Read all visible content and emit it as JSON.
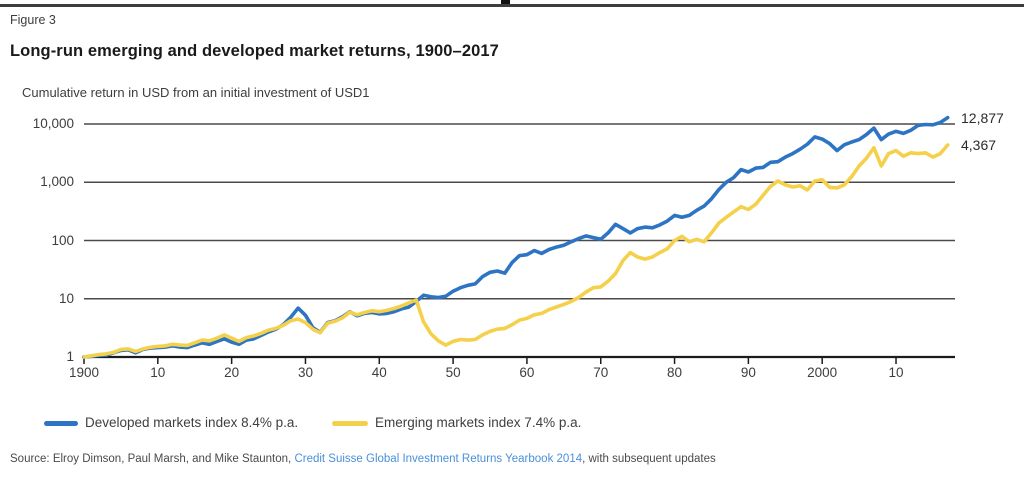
{
  "figure_label": "Figure 3",
  "title": "Long-run emerging and developed market returns, 1900–2017",
  "subtitle": "Cumulative return in USD from an initial investment of USD1",
  "end_labels": {
    "developed": "12,877",
    "emerging": "4,367"
  },
  "legend": [
    {
      "label": "Developed markets index 8.4% p.a.",
      "color": "#2e74c4"
    },
    {
      "label": "Emerging markets index 7.4% p.a.",
      "color": "#f5d04a"
    }
  ],
  "source": {
    "prefix": "Source: Elroy Dimson, Paul Marsh, and Mike Staunton, ",
    "link": "Credit Suisse Global Investment Returns Yearbook 2014",
    "suffix": ", with subsequent updates"
  },
  "colors": {
    "developed_line": "#2e74c4",
    "emerging_line": "#f5d04a",
    "gridline": "#4a4a4a",
    "axis": "#1c1c1c",
    "link": "#4a90d9"
  },
  "chart_data": {
    "type": "line",
    "title": "Long-run emerging and developed market returns, 1900–2017",
    "note": "Cumulative return in USD from an initial investment of USD1",
    "yscale": "log",
    "ylim": [
      1,
      17000
    ],
    "grid": "horizontal",
    "legend_position": "bottom",
    "x_start": 1900,
    "x_step": 1,
    "x_end": 2017,
    "x_ticks": [
      {
        "year": 1900,
        "label": "1900"
      },
      {
        "year": 1910,
        "label": "10"
      },
      {
        "year": 1920,
        "label": "20"
      },
      {
        "year": 1930,
        "label": "30"
      },
      {
        "year": 1940,
        "label": "40"
      },
      {
        "year": 1950,
        "label": "50"
      },
      {
        "year": 1960,
        "label": "60"
      },
      {
        "year": 1970,
        "label": "70"
      },
      {
        "year": 1980,
        "label": "80"
      },
      {
        "year": 1990,
        "label": "90"
      },
      {
        "year": 2000,
        "label": "2000"
      },
      {
        "year": 2010,
        "label": "10"
      }
    ],
    "y_ticks": [
      {
        "value": 1,
        "label": "1"
      },
      {
        "value": 10,
        "label": "10"
      },
      {
        "value": 100,
        "label": "100"
      },
      {
        "value": 1000,
        "label": "1,000"
      },
      {
        "value": 10000,
        "label": "10,000"
      }
    ],
    "series": [
      {
        "name": "Developed markets index",
        "annualized_return": "8.4% p.a.",
        "color": "#2e74c4",
        "end_value": 12877,
        "end_label": "12,877",
        "values": [
          1.0,
          1.03,
          1.06,
          1.08,
          1.18,
          1.3,
          1.33,
          1.18,
          1.35,
          1.42,
          1.45,
          1.48,
          1.55,
          1.48,
          1.45,
          1.6,
          1.75,
          1.65,
          1.85,
          2.05,
          1.8,
          1.65,
          1.95,
          2.05,
          2.35,
          2.7,
          3.0,
          3.6,
          4.8,
          6.9,
          5.2,
          3.2,
          2.65,
          3.9,
          4.2,
          4.9,
          6.0,
          5.1,
          5.6,
          5.8,
          5.5,
          5.6,
          6.0,
          6.7,
          7.2,
          9.0,
          11.5,
          10.8,
          10.5,
          11.0,
          13.5,
          15.5,
          17.0,
          18.0,
          24.0,
          28.5,
          30.0,
          27.5,
          42.0,
          55.0,
          57,
          67,
          60,
          70,
          77,
          83,
          95,
          108,
          120,
          112,
          105,
          135,
          190,
          160,
          135,
          160,
          170,
          165,
          185,
          215,
          270,
          250,
          270,
          330,
          390,
          520,
          750,
          1000,
          1200,
          1650,
          1500,
          1750,
          1800,
          2200,
          2250,
          2700,
          3100,
          3700,
          4500,
          6000,
          5500,
          4600,
          3500,
          4400,
          4900,
          5400,
          6600,
          8500,
          5400,
          6700,
          7500,
          6900,
          7800,
          9500,
          9800,
          9700,
          10600,
          12877
        ]
      },
      {
        "name": "Emerging markets index",
        "annualized_return": "7.4% p.a.",
        "color": "#f5d04a",
        "end_value": 4367,
        "end_label": "4,367",
        "values": [
          1.0,
          1.05,
          1.1,
          1.13,
          1.2,
          1.35,
          1.38,
          1.25,
          1.38,
          1.47,
          1.52,
          1.55,
          1.65,
          1.6,
          1.58,
          1.75,
          1.95,
          1.9,
          2.1,
          2.4,
          2.1,
          1.85,
          2.15,
          2.3,
          2.55,
          2.9,
          3.1,
          3.5,
          4.2,
          4.5,
          3.9,
          3.0,
          2.6,
          3.8,
          4.1,
          4.7,
          5.9,
          5.3,
          5.8,
          6.2,
          6.0,
          6.3,
          6.8,
          7.5,
          8.5,
          9.5,
          4.0,
          2.5,
          1.9,
          1.6,
          1.85,
          2.0,
          1.95,
          2.0,
          2.4,
          2.75,
          3.0,
          3.1,
          3.6,
          4.3,
          4.6,
          5.3,
          5.6,
          6.5,
          7.2,
          8.0,
          9.0,
          10.5,
          13.0,
          15.5,
          16.0,
          20.0,
          27.0,
          45.0,
          62.0,
          52.0,
          48.0,
          52.0,
          62.0,
          72.0,
          100,
          118,
          95,
          105,
          95,
          135,
          200,
          250,
          310,
          380,
          340,
          420,
          600,
          850,
          1050,
          900,
          830,
          870,
          740,
          1050,
          1100,
          820,
          800,
          900,
          1250,
          1900,
          2600,
          3900,
          1900,
          3100,
          3500,
          2800,
          3200,
          3100,
          3200,
          2700,
          3100,
          4367
        ]
      }
    ]
  }
}
